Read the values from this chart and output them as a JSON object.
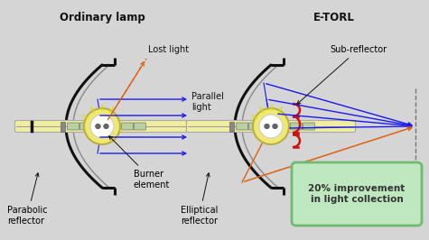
{
  "bg_color": "#d5d5d5",
  "title_left": "Ordinary lamp",
  "title_right": "E-TORL",
  "label_lost": "Lost light",
  "label_parallel": "Parallel\nlight",
  "label_burner": "Burner\nelement",
  "label_parabolic": "Parabolic\nreflector",
  "label_subreflector": "Sub-reflector",
  "label_elliptical": "Elliptical\nreflector",
  "label_improvement": "20% improvement\nin light collection",
  "blue": "#1a1aee",
  "orange": "#e06010",
  "red": "#cc1111",
  "black": "#111111",
  "gray": "#888888",
  "lamp_yellow": "#f0eda0",
  "bulb_yellow": "#f0e870",
  "green_glass": "#b8d0a0",
  "tube_outline": "#aaaaaa",
  "improvement_bg": "#c0e8c0",
  "improvement_border": "#70bb70",
  "white": "#ffffff"
}
